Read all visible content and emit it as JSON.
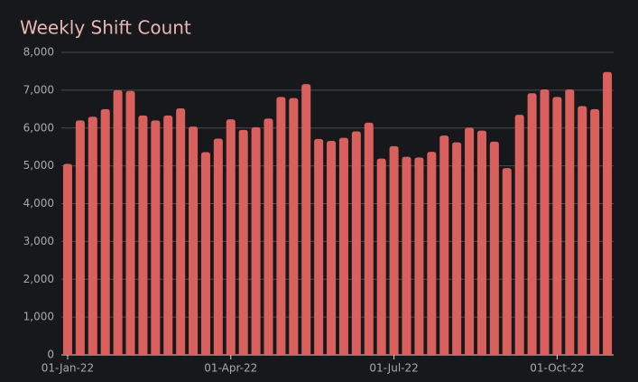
{
  "chart_data": {
    "type": "bar",
    "title": "Weekly Shift Count",
    "categories": [
      "01-Jan-22",
      null,
      null,
      null,
      null,
      null,
      null,
      null,
      null,
      null,
      null,
      null,
      null,
      "01-Apr-22",
      null,
      null,
      null,
      null,
      null,
      null,
      null,
      null,
      null,
      null,
      null,
      null,
      "01-Jul-22",
      null,
      null,
      null,
      null,
      null,
      null,
      null,
      null,
      null,
      null,
      null,
      null,
      "01-Oct-22",
      null,
      null,
      null,
      null
    ],
    "values": [
      5050,
      6200,
      6300,
      6500,
      7000,
      6980,
      6330,
      6200,
      6330,
      6520,
      6040,
      5360,
      5720,
      6230,
      5950,
      6020,
      6250,
      6820,
      6790,
      7160,
      5710,
      5660,
      5740,
      5910,
      6140,
      5190,
      5520,
      5240,
      5220,
      5370,
      5800,
      5620,
      6010,
      5930,
      5640,
      4940,
      6350,
      6920,
      7020,
      6820,
      7020,
      6580,
      6500,
      7480
    ],
    "color": "#d9605c",
    "ylim": [
      0,
      8000
    ],
    "yticks": [
      {
        "value": 0,
        "label": "0"
      },
      {
        "value": 1000,
        "label": "1,000"
      },
      {
        "value": 2000,
        "label": "2,000"
      },
      {
        "value": 3000,
        "label": "3,000"
      },
      {
        "value": 4000,
        "label": "4,000"
      },
      {
        "value": 5000,
        "label": "5,000"
      },
      {
        "value": 6000,
        "label": "6,000"
      },
      {
        "value": 7000,
        "label": "7,000"
      },
      {
        "value": 8000,
        "label": "8,000"
      }
    ],
    "grid": true
  }
}
